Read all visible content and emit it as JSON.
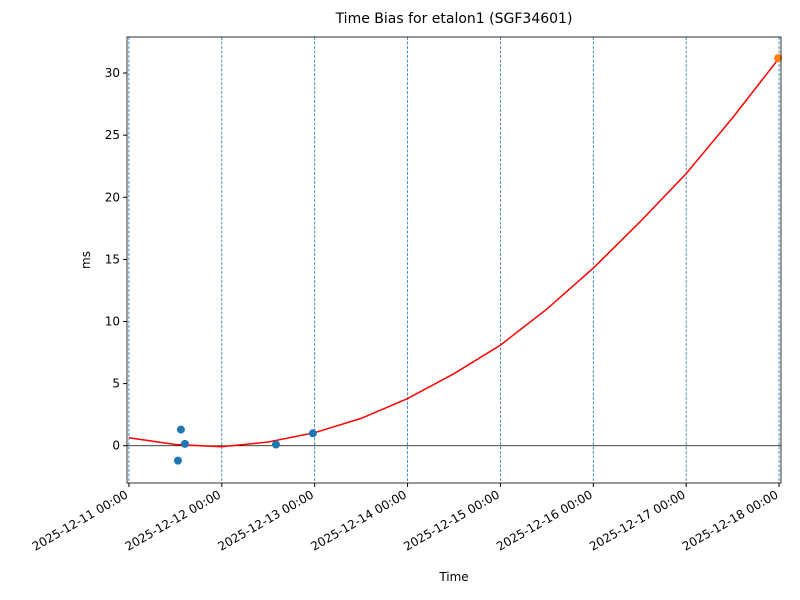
{
  "chart_data": {
    "type": "scatter",
    "title": "Time Bias for etalon1 (SGF34601)",
    "xlabel": "Time",
    "ylabel": "ms",
    "series": [
      {
        "type": "line",
        "color": "#ff0000",
        "x": [
          "2025-12-11 00:00",
          "2025-12-11 12:00",
          "2025-12-12 00:00",
          "2025-12-12 12:00",
          "2025-12-13 00:00",
          "2025-12-13 12:00",
          "2025-12-14 00:00",
          "2025-12-14 12:00",
          "2025-12-15 00:00",
          "2025-12-15 12:00",
          "2025-12-16 00:00",
          "2025-12-16 12:00",
          "2025-12-17 00:00",
          "2025-12-17 12:00",
          "2025-12-18 00:00"
        ],
        "values": [
          0.64,
          0.1,
          -0.08,
          0.3,
          1.05,
          2.2,
          3.8,
          5.8,
          8.1,
          11.0,
          14.3,
          18.0,
          21.9,
          26.4,
          31.2
        ]
      },
      {
        "type": "scatter",
        "color": "#1f77b4",
        "x": [
          "2025-12-11 12:40",
          "2025-12-11 13:26",
          "2025-12-11 14:28",
          "2025-12-12 14:00",
          "2025-12-12 23:32"
        ],
        "values": [
          -1.2,
          1.3,
          0.15,
          0.1,
          1.0
        ]
      },
      {
        "type": "scatter",
        "color": "#ff7f0e",
        "x": [
          "2025-12-17 23:45"
        ],
        "values": [
          31.2
        ]
      }
    ],
    "xlim": [
      "2025-12-10 23:30",
      "2025-12-18 00:30"
    ],
    "xticks": [
      "2025-12-11 00:00",
      "2025-12-12 00:00",
      "2025-12-13 00:00",
      "2025-12-14 00:00",
      "2025-12-15 00:00",
      "2025-12-16 00:00",
      "2025-12-17 00:00",
      "2025-12-18 00:00"
    ],
    "ylim": [
      -3,
      32.9
    ],
    "yticks": [
      0,
      5,
      10,
      15,
      20,
      25,
      30
    ],
    "grid": "x",
    "grid_color": "#1f77b4",
    "hlines": [
      0
    ]
  }
}
